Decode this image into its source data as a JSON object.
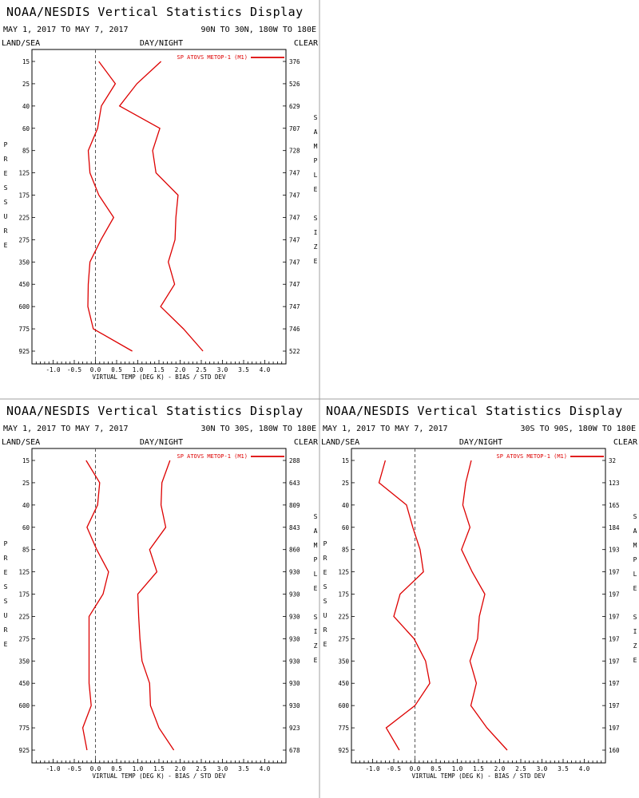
{
  "panel_meta": {
    "divider_color": "#a0a0a0",
    "series_color": "#dd0000"
  },
  "chart_data": [
    {
      "type": "line",
      "title": "NOAA/NESDIS Vertical Statistics Display",
      "date_range": "MAY 1, 2017 TO MAY 7, 2017",
      "region": "90N TO 30N, 180W TO 180E",
      "left_header": "LAND/SEA",
      "center_header": "DAY/NIGHT",
      "right_header": "CLEAR",
      "xlabel": "VIRTUAL TEMP (DEG K) - BIAS / STD DEV",
      "ylabel": "PRESSURE",
      "right_label": "SAMPLE SIZE",
      "legend": "SP ATOVS METOP-1 (M1)",
      "xlim": [
        -1.5,
        4.5
      ],
      "x_ticks": [
        "-1.0",
        "-0.5",
        "0.0",
        "0.5",
        "1.0",
        "1.5",
        "2.0",
        "2.5",
        "3.0",
        "3.5",
        "4.0"
      ],
      "pressure_levels": [
        "15",
        "25",
        "40",
        "60",
        "85",
        "125",
        "175",
        "225",
        "275",
        "350",
        "450",
        "600",
        "775",
        "925"
      ],
      "sample_size": [
        "376",
        "526",
        "629",
        "707",
        "728",
        "747",
        "747",
        "747",
        "747",
        "747",
        "747",
        "747",
        "746",
        "522"
      ],
      "series": [
        {
          "kind": "bias",
          "values": [
            0.08,
            0.47,
            0.14,
            0.05,
            -0.17,
            -0.13,
            0.08,
            0.43,
            0.13,
            -0.13,
            -0.17,
            -0.18,
            -0.05,
            0.87
          ]
        },
        {
          "kind": "std_dev",
          "values": [
            1.55,
            0.98,
            0.57,
            1.52,
            1.35,
            1.43,
            1.95,
            1.9,
            1.88,
            1.72,
            1.87,
            1.54,
            2.08,
            2.54
          ]
        }
      ]
    },
    {
      "type": "line",
      "title": "NOAA/NESDIS Vertical Statistics Display",
      "date_range": "MAY 1, 2017 TO MAY 7, 2017",
      "region": "30N TO 30S, 180W TO 180E",
      "left_header": "LAND/SEA",
      "center_header": "DAY/NIGHT",
      "right_header": "CLEAR",
      "xlabel": "VIRTUAL TEMP (DEG K) - BIAS / STD DEV",
      "ylabel": "PRESSURE",
      "right_label": "SAMPLE SIZE",
      "legend": "SP ATOVS METOP-1 (M1)",
      "xlim": [
        -1.5,
        4.5
      ],
      "x_ticks": [
        "-1.0",
        "-0.5",
        "0.0",
        "0.5",
        "1.0",
        "1.5",
        "2.0",
        "2.5",
        "3.0",
        "3.5",
        "4.0"
      ],
      "pressure_levels": [
        "15",
        "25",
        "40",
        "60",
        "85",
        "125",
        "175",
        "225",
        "275",
        "350",
        "450",
        "600",
        "775",
        "925"
      ],
      "sample_size": [
        "288",
        "643",
        "809",
        "843",
        "860",
        "930",
        "930",
        "930",
        "930",
        "930",
        "930",
        "930",
        "923",
        "678"
      ],
      "series": [
        {
          "kind": "bias",
          "values": [
            -0.22,
            0.1,
            0.05,
            -0.2,
            0.03,
            0.31,
            0.18,
            -0.15,
            -0.15,
            -0.15,
            -0.15,
            -0.1,
            -0.3,
            -0.2
          ]
        },
        {
          "kind": "std_dev",
          "values": [
            1.76,
            1.57,
            1.55,
            1.66,
            1.28,
            1.45,
            1.0,
            1.02,
            1.05,
            1.1,
            1.28,
            1.3,
            1.5,
            1.85
          ]
        }
      ]
    },
    {
      "type": "line",
      "title": "NOAA/NESDIS Vertical Statistics Display",
      "date_range": "MAY 1, 2017 TO MAY 7, 2017",
      "region": "30S TO 90S, 180W TO 180E",
      "left_header": "LAND/SEA",
      "center_header": "DAY/NIGHT",
      "right_header": "CLEAR",
      "xlabel": "VIRTUAL TEMP (DEG K) - BIAS / STD DEV",
      "ylabel": "PRESSURE",
      "right_label": "SAMPLE SIZE",
      "legend": "SP ATOVS METOP-1 (M1)",
      "xlim": [
        -1.5,
        4.5
      ],
      "x_ticks": [
        "-1.0",
        "-0.5",
        "0.0",
        "0.5",
        "1.0",
        "1.5",
        "2.0",
        "2.5",
        "3.0",
        "3.5",
        "4.0"
      ],
      "pressure_levels": [
        "15",
        "25",
        "40",
        "60",
        "85",
        "125",
        "175",
        "225",
        "275",
        "350",
        "450",
        "600",
        "775",
        "925"
      ],
      "sample_size": [
        "32",
        "123",
        "165",
        "184",
        "193",
        "197",
        "197",
        "197",
        "197",
        "197",
        "197",
        "197",
        "197",
        "160"
      ],
      "series": [
        {
          "kind": "bias",
          "values": [
            -0.7,
            -0.85,
            -0.2,
            -0.05,
            0.12,
            0.2,
            -0.35,
            -0.5,
            -0.02,
            0.25,
            0.35,
            0.0,
            -0.68,
            -0.37
          ]
        },
        {
          "kind": "std_dev",
          "values": [
            1.33,
            1.2,
            1.13,
            1.3,
            1.1,
            1.35,
            1.65,
            1.52,
            1.48,
            1.3,
            1.45,
            1.32,
            1.7,
            2.18
          ]
        }
      ]
    }
  ]
}
